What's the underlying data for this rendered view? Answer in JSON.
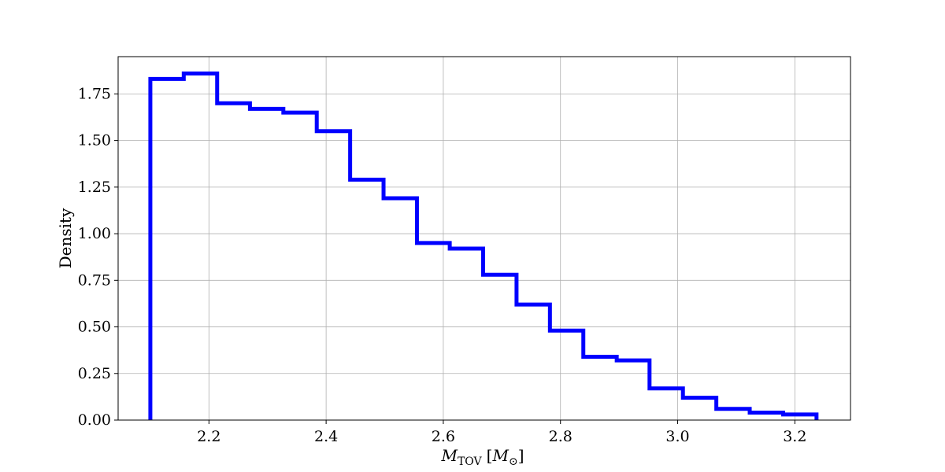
{
  "chart_data": {
    "type": "histogram",
    "histtype": "step",
    "title": "",
    "xlabel_main": "M",
    "xlabel_sub": "TOV",
    "xlabel_unit_open": "[",
    "xlabel_unit_main": "M",
    "xlabel_unit_sub": "⊙",
    "xlabel_unit_close": "]",
    "ylabel": "Density",
    "xlim": [
      2.045,
      3.295
    ],
    "ylim": [
      0.0,
      1.95
    ],
    "xticks": [
      2.2,
      2.4,
      2.6,
      2.8,
      3.0,
      3.2
    ],
    "xtick_labels": [
      "2.2",
      "2.4",
      "2.6",
      "2.8",
      "3.0",
      "3.2"
    ],
    "yticks": [
      0.0,
      0.25,
      0.5,
      0.75,
      1.0,
      1.25,
      1.5,
      1.75
    ],
    "ytick_labels": [
      "0.00",
      "0.25",
      "0.50",
      "0.75",
      "1.00",
      "1.25",
      "1.50",
      "1.75"
    ],
    "grid": true,
    "line_color": "#0000ff",
    "bin_edges": [
      2.1,
      2.157,
      2.214,
      2.27,
      2.327,
      2.384,
      2.441,
      2.498,
      2.555,
      2.611,
      2.668,
      2.725,
      2.782,
      2.839,
      2.896,
      2.952,
      3.009,
      3.066,
      3.123,
      3.18,
      3.237
    ],
    "densities": [
      1.83,
      1.86,
      1.7,
      1.67,
      1.65,
      1.55,
      1.29,
      1.19,
      0.95,
      0.92,
      0.78,
      0.62,
      0.48,
      0.34,
      0.32,
      0.17,
      0.12,
      0.06,
      0.04,
      0.03
    ]
  }
}
